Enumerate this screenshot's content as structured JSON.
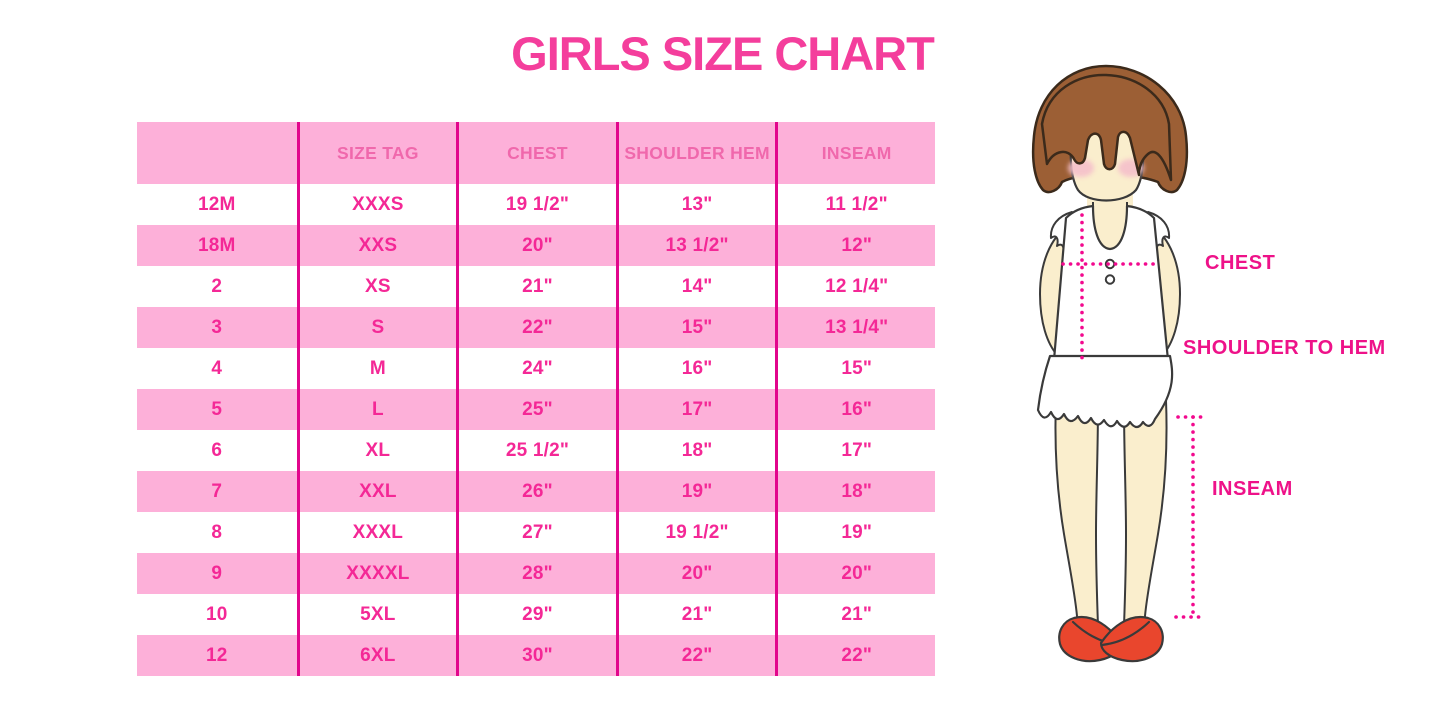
{
  "title": "GIRLS SIZE CHART",
  "chart_data": {
    "type": "table",
    "title": "GIRLS SIZE CHART",
    "columns": [
      "",
      "SIZE TAG",
      "CHEST",
      "SHOULDER HEM",
      "INSEAM"
    ],
    "rows": [
      [
        "12M",
        "XXXS",
        "19 1/2\"",
        "13\"",
        "11 1/2\""
      ],
      [
        "18M",
        "XXS",
        "20\"",
        "13 1/2\"",
        "12\""
      ],
      [
        "2",
        "XS",
        "21\"",
        "14\"",
        "12 1/4\""
      ],
      [
        "3",
        "S",
        "22\"",
        "15\"",
        "13 1/4\""
      ],
      [
        "4",
        "M",
        "24\"",
        "16\"",
        "15\""
      ],
      [
        "5",
        "L",
        "25\"",
        "17\"",
        "16\""
      ],
      [
        "6",
        "XL",
        "25 1/2\"",
        "18\"",
        "17\""
      ],
      [
        "7",
        "XXL",
        "26\"",
        "19\"",
        "18\""
      ],
      [
        "8",
        "XXXL",
        "27\"",
        "19 1/2\"",
        "19\""
      ],
      [
        "9",
        "XXXXL",
        "28\"",
        "20\"",
        "20\""
      ],
      [
        "10",
        "5XL",
        "29\"",
        "21\"",
        "21\""
      ],
      [
        "12",
        "6XL",
        "30\"",
        "22\"",
        "22\""
      ]
    ],
    "layout": {
      "striped_rows": true,
      "stripe_color": "#FDB0D9",
      "grid": "vertical-only"
    }
  },
  "figure": {
    "labels": {
      "chest": "CHEST",
      "shoulder_to_hem": "SHOULDER TO HEM",
      "inseam": "INSEAM"
    }
  },
  "colors": {
    "title_text": "#F43E9C",
    "row_pink": "#FDB0D9",
    "grid_line": "#E2068C",
    "cell_text": "#F42896",
    "header_text": "#F068AC",
    "label_text": "#EE1289",
    "dotted_line": "#F2098E",
    "hair": "#9C5F35",
    "skin": "#FAEECD",
    "blush": "#F5C0CB",
    "shoe_red": "#E9462D"
  }
}
